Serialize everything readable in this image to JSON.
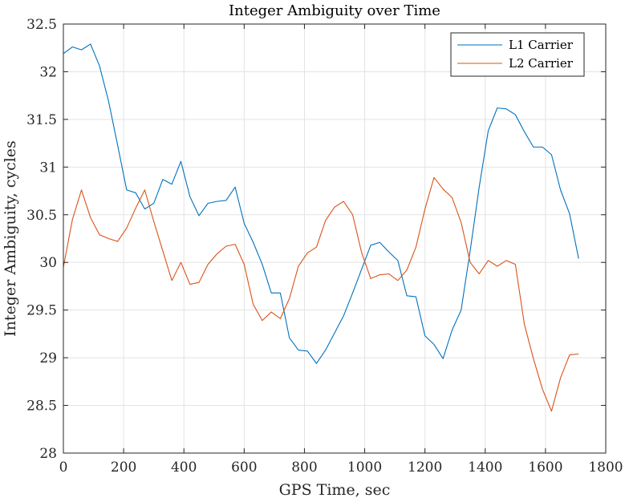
{
  "chart_data": {
    "type": "line",
    "title": "Integer Ambiguity over Time",
    "xlabel": "GPS Time, sec",
    "ylabel": "Integer Ambiguity, cycles",
    "xlim": [
      0,
      1800
    ],
    "ylim": [
      28,
      32.5
    ],
    "xticks": [
      0,
      200,
      400,
      600,
      800,
      1000,
      1200,
      1400,
      1600,
      1800
    ],
    "xtick_labels": [
      "0",
      "200",
      "400",
      "600",
      "800",
      "1000",
      "1200",
      "1400",
      "1600",
      "1800"
    ],
    "yticks": [
      28,
      28.5,
      29,
      29.5,
      30,
      30.5,
      31,
      31.5,
      32,
      32.5
    ],
    "ytick_labels": [
      "28",
      "28.5",
      "29",
      "29.5",
      "30",
      "30.5",
      "31",
      "31.5",
      "32",
      "32.5"
    ],
    "grid": true,
    "legend_location": "top-right",
    "series": [
      {
        "name": "L1 Carrier",
        "color": "#0072BD",
        "x": [
          0,
          30,
          60,
          90,
          120,
          150,
          180,
          210,
          240,
          270,
          300,
          330,
          360,
          390,
          420,
          450,
          480,
          510,
          540,
          570,
          600,
          630,
          660,
          690,
          720,
          750,
          780,
          810,
          840,
          870,
          900,
          930,
          960,
          990,
          1020,
          1050,
          1080,
          1110,
          1140,
          1170,
          1200,
          1230,
          1260,
          1290,
          1320,
          1350,
          1380,
          1410,
          1440,
          1470,
          1500,
          1530,
          1560,
          1590,
          1620,
          1650,
          1680,
          1710
        ],
        "y": [
          32.19,
          32.26,
          32.23,
          32.29,
          32.06,
          31.69,
          31.23,
          30.76,
          30.73,
          30.56,
          30.62,
          30.87,
          30.82,
          31.06,
          30.69,
          30.49,
          30.62,
          30.64,
          30.65,
          30.79,
          30.41,
          30.21,
          29.98,
          29.68,
          29.68,
          29.21,
          29.08,
          29.07,
          28.94,
          29.08,
          29.26,
          29.44,
          29.68,
          29.93,
          30.18,
          30.21,
          30.11,
          30.02,
          29.65,
          29.64,
          29.23,
          29.14,
          28.99,
          29.29,
          29.5,
          30.12,
          30.79,
          31.38,
          31.62,
          31.61,
          31.55,
          31.37,
          31.21,
          31.21,
          31.13,
          30.76,
          30.51,
          30.04
        ]
      },
      {
        "name": "L2 Carrier",
        "color": "#D95319",
        "x": [
          0,
          30,
          60,
          90,
          120,
          150,
          180,
          210,
          240,
          270,
          300,
          330,
          360,
          390,
          420,
          450,
          480,
          510,
          540,
          570,
          600,
          630,
          660,
          690,
          720,
          750,
          780,
          810,
          840,
          870,
          900,
          930,
          960,
          990,
          1020,
          1050,
          1080,
          1110,
          1140,
          1170,
          1200,
          1230,
          1260,
          1290,
          1320,
          1350,
          1380,
          1410,
          1440,
          1470,
          1500,
          1530,
          1560,
          1590,
          1620,
          1650,
          1680,
          1710
        ],
        "y": [
          29.95,
          30.45,
          30.76,
          30.47,
          30.29,
          30.25,
          30.22,
          30.36,
          30.57,
          30.76,
          30.43,
          30.12,
          29.81,
          30.0,
          29.77,
          29.79,
          29.98,
          30.09,
          30.17,
          30.19,
          29.98,
          29.56,
          29.39,
          29.48,
          29.41,
          29.62,
          29.96,
          30.1,
          30.16,
          30.44,
          30.58,
          30.64,
          30.5,
          30.1,
          29.83,
          29.87,
          29.88,
          29.81,
          29.92,
          30.16,
          30.56,
          30.89,
          30.77,
          30.68,
          30.42,
          30.0,
          29.88,
          30.02,
          29.96,
          30.02,
          29.98,
          29.35,
          28.99,
          28.67,
          28.44,
          28.79,
          29.03,
          29.04
        ]
      }
    ]
  }
}
